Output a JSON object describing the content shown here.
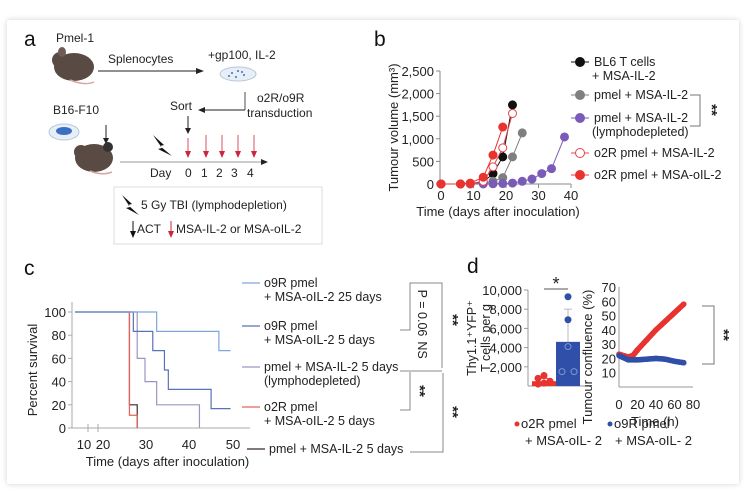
{
  "panels": {
    "a": {
      "letter": "a",
      "pmel_label": "Pmel-1",
      "splenocytes_label": "Splenocytes",
      "culture_label": "+gp100, IL-2",
      "transduction_label_1": "o2R/o9R",
      "transduction_label_2": "transduction",
      "sort_label": "Sort",
      "tumour_line_label": "B16-F10",
      "day_label": "Day",
      "days": [
        "0",
        "1",
        "2",
        "3",
        "4"
      ],
      "legend": {
        "tbi": "5 Gy TBI (lymphodepletion)",
        "act": "ACT",
        "cytokine": "MSA-IL-2 or MSA-oIL-2"
      },
      "colors": {
        "dose_arrow": "#c8283c",
        "mouse": "#5a4a44",
        "cells": "#3a6fc4"
      }
    },
    "b": {
      "letter": "b"
    },
    "c": {
      "letter": "c"
    },
    "d": {
      "letter": "d"
    }
  },
  "chart_data": [
    {
      "id": "b",
      "type": "line",
      "title": "",
      "xlabel": "Time (days after inoculation)",
      "ylabel": "Tumour volume (mm³)",
      "xlim": [
        0,
        40
      ],
      "ylim": [
        0,
        2500
      ],
      "xticks": [
        "0",
        "10",
        "20",
        "30",
        "40"
      ],
      "yticks": [
        "0",
        "500",
        "1,000",
        "1,500",
        "2,000",
        "2,500"
      ],
      "ytick_values": [
        0,
        500,
        1000,
        1500,
        2000,
        2500
      ],
      "xtick_values": [
        0,
        10,
        20,
        30,
        40
      ],
      "series": [
        {
          "name": "BL6 T cells + MSA-IL-2",
          "label_lines": [
            "BL6 T cells",
            "+ MSA-IL-2"
          ],
          "color": "#111111",
          "marker": "filled",
          "x": [
            0,
            6,
            9,
            13,
            16,
            19,
            22
          ],
          "y": [
            0,
            0,
            10,
            40,
            230,
            600,
            1750
          ]
        },
        {
          "name": "pmel + MSA-IL-2",
          "label_lines": [
            "pmel + MSA-IL-2"
          ],
          "color": "#7f7f7f",
          "marker": "filled",
          "x": [
            0,
            6,
            9,
            13,
            16,
            19,
            22,
            25
          ],
          "y": [
            0,
            0,
            5,
            20,
            60,
            140,
            600,
            1130
          ]
        },
        {
          "name": "pmel + MSA-IL-2 (lymphodepleted)",
          "label_lines": [
            "pmel + MSA-IL-2",
            "(lymphodepleted)"
          ],
          "color": "#7a5cb8",
          "marker": "filled",
          "x": [
            0,
            6,
            9,
            13,
            16,
            19,
            22,
            25,
            28,
            31,
            34,
            38
          ],
          "y": [
            0,
            0,
            0,
            0,
            5,
            10,
            20,
            60,
            110,
            230,
            340,
            1040
          ]
        },
        {
          "name": "o2R pmel + MSA-IL-2",
          "label_lines": [
            "o2R pmel + MSA-IL-2"
          ],
          "color": "#e8434a",
          "marker": "open",
          "x": [
            0,
            6,
            9,
            13,
            16,
            19,
            22
          ],
          "y": [
            0,
            0,
            5,
            60,
            380,
            800,
            1560
          ]
        },
        {
          "name": "o2R pmel + MSA-oIL-2",
          "label_lines": [
            "o2R pmel + MSA-oIL-2"
          ],
          "color": "#e8332f",
          "marker": "filled",
          "x": [
            0,
            6,
            9,
            13,
            16,
            19
          ],
          "y": [
            0,
            0,
            20,
            150,
            640,
            1260
          ]
        }
      ],
      "significance": [
        {
          "between": [
            "pmel + MSA-IL-2",
            "pmel + MSA-IL-2 (lymphodepleted)"
          ],
          "label": "**"
        }
      ],
      "legend_position": "right"
    },
    {
      "id": "c",
      "type": "line",
      "subtype": "kaplan-meier",
      "xlabel": "Time (days after inoculation)",
      "ylabel": "Percent survival",
      "xlim": [
        10,
        55
      ],
      "ylim": [
        0,
        100
      ],
      "xticks": [
        "10",
        "20",
        "30",
        "40",
        "50"
      ],
      "xtick_values": [
        10,
        20,
        30,
        40,
        50
      ],
      "yticks": [
        "0",
        "20",
        "40",
        "60",
        "80",
        "100"
      ],
      "ytick_values": [
        0,
        20,
        40,
        60,
        80,
        100
      ],
      "series": [
        {
          "name": "o9R pmel + MSA-oIL-2 25 days",
          "label_lines": [
            "o9R pmel",
            "+ MSA-oIL-2 25 days"
          ],
          "color": "#7fa6d9",
          "steps": [
            [
              10,
              100
            ],
            [
              31,
              100
            ],
            [
              31,
              83.3
            ],
            [
              47,
              83.3
            ],
            [
              47,
              66.7
            ],
            [
              50,
              66.7
            ]
          ]
        },
        {
          "name": "o9R pmel + MSA-oIL-2 5 days",
          "label_lines": [
            "o9R pmel",
            "+ MSA-oIL-2 5 days"
          ],
          "color": "#5a72b8",
          "steps": [
            [
              10,
              100
            ],
            [
              25,
              100
            ],
            [
              25,
              83.3
            ],
            [
              30,
              83.3
            ],
            [
              30,
              66.7
            ],
            [
              33,
              66.7
            ],
            [
              33,
              50
            ],
            [
              34,
              50
            ],
            [
              34,
              33.3
            ],
            [
              45,
              33.3
            ],
            [
              45,
              16.7
            ],
            [
              50,
              16.7
            ]
          ]
        },
        {
          "name": "pmel + MSA-IL-2 5 days (lymphodepleted)",
          "label_lines": [
            "pmel + MSA-IL-2 5 days",
            "(lymphodepleted)"
          ],
          "color": "#9a96c4",
          "steps": [
            [
              10,
              100
            ],
            [
              26,
              100
            ],
            [
              26,
              60
            ],
            [
              28,
              60
            ],
            [
              28,
              40
            ],
            [
              31,
              40
            ],
            [
              31,
              20
            ],
            [
              42,
              20
            ],
            [
              42,
              0
            ]
          ]
        },
        {
          "name": "o2R pmel + MSA-oIL-2 5 days",
          "label_lines": [
            "o2R pmel",
            "+ MSA-oIL-2 5 days"
          ],
          "color": "#e8605a",
          "steps": [
            [
              10,
              100
            ],
            [
              24,
              100
            ],
            [
              24,
              11
            ],
            [
              26,
              11
            ],
            [
              26,
              0
            ]
          ]
        },
        {
          "name": "pmel + MSA-IL-2 5 days",
          "label_lines": [
            "pmel + MSA-IL-2 5 days"
          ],
          "color": "#3a2a2a",
          "steps": [
            [
              10,
              100
            ],
            [
              24,
              100
            ],
            [
              24,
              20
            ],
            [
              26,
              20
            ],
            [
              26,
              0
            ]
          ]
        }
      ],
      "significance": [
        {
          "between": [
            "o9R pmel + MSA-oIL-2 25 days",
            "o9R pmel + MSA-oIL-2 5 days"
          ],
          "label": "P = 0.06"
        },
        {
          "between": [
            "o9R pmel + MSA-oIL-2 5 days",
            "pmel + MSA-IL-2 5 days (lymphodepleted)"
          ],
          "label": "NS"
        },
        {
          "between": [
            "o9R pmel + MSA-oIL-2 25 days",
            "pmel + MSA-IL-2 5 days (lymphodepleted)"
          ],
          "label": "**"
        },
        {
          "between": [
            "pmel + MSA-IL-2 5 days (lymphodepleted)",
            "o2R pmel + MSA-oIL-2 5 days"
          ],
          "label": "**"
        },
        {
          "between": [
            "pmel + MSA-IL-2 5 days (lymphodepleted)",
            "pmel + MSA-IL-2 5 days"
          ],
          "label": "**"
        }
      ],
      "legend_position": "right"
    },
    {
      "id": "d-left",
      "type": "bar",
      "ylabel_lines": [
        "Thy1.1⁺YFP⁺",
        "T cells per g"
      ],
      "ylim": [
        0,
        10000
      ],
      "yticks": [
        "2,000",
        "4,000",
        "6,000",
        "8,000",
        "10,000"
      ],
      "ytick_values": [
        2000,
        4000,
        6000,
        8000,
        10000
      ],
      "categories": [
        "o2R pmel + MSA-oIL-2",
        "o9R pmel + MSA-oIL-2"
      ],
      "values": [
        500,
        4600
      ],
      "errors": [
        300,
        3400
      ],
      "colors": [
        "#e8332f",
        "#2f4fa8"
      ],
      "points": [
        [
          200,
          300,
          500,
          800,
          1100
        ],
        [
          1500,
          1500,
          4100,
          6900,
          9300
        ]
      ],
      "significance": "*"
    },
    {
      "id": "d-right",
      "type": "scatter",
      "xlabel": "Time (h)",
      "ylabel": "Tumour confluence (%)",
      "xlim": [
        0,
        80
      ],
      "ylim": [
        0,
        70
      ],
      "xticks": [
        "0",
        "20",
        "40",
        "60",
        "80"
      ],
      "xtick_values": [
        0,
        20,
        40,
        60,
        80
      ],
      "yticks": [
        "10",
        "20",
        "30",
        "40",
        "50",
        "60",
        "70"
      ],
      "ytick_values": [
        10,
        20,
        30,
        40,
        50,
        60,
        70
      ],
      "series": [
        {
          "name": "o2R pmel + MSA-oIL-2",
          "color": "#e8332f",
          "x": [
            0,
            10,
            15,
            20,
            30,
            40,
            50,
            60,
            70
          ],
          "y": [
            23,
            21,
            22,
            26,
            33,
            40,
            46,
            52,
            58
          ]
        },
        {
          "name": "o9R pmel + MSA-oIL-2",
          "color": "#2f4fa8",
          "x": [
            0,
            10,
            20,
            30,
            40,
            50,
            60,
            70
          ],
          "y": [
            22,
            19,
            19,
            19.5,
            20,
            19.5,
            18,
            17
          ]
        }
      ],
      "significance": "**"
    }
  ],
  "d_legend": [
    {
      "line1": "o2R pmel",
      "line2": "+ MSA-oIL- 2",
      "color": "#e8332f"
    },
    {
      "line1": "o9R pmel",
      "line2": "+ MSA-oIL- 2",
      "color": "#2f4fa8"
    }
  ]
}
